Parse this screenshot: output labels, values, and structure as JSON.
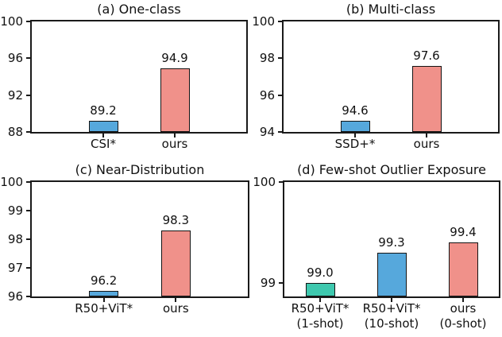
{
  "figure": {
    "background_color": "#ffffff",
    "text_color": "#111111",
    "spine_color": "#1a1a1a",
    "bar_edge_color": "#141414",
    "palette": {
      "blue": "#56A8DC",
      "salmon": "#F0918A",
      "teal": "#3EC8AE"
    }
  },
  "chart_data": [
    {
      "type": "bar",
      "title": "(a) One-class",
      "categories": [
        "CSI*",
        "ours"
      ],
      "values": [
        89.2,
        94.9
      ],
      "value_labels": [
        "89.2",
        "94.9"
      ],
      "bar_colors": [
        "#56A8DC",
        "#F0918A"
      ],
      "ylim": [
        88,
        100
      ],
      "yticks": [
        88,
        92,
        96,
        100
      ],
      "grid": false,
      "legend": null
    },
    {
      "type": "bar",
      "title": "(b) Multi-class",
      "categories": [
        "SSD+*",
        "ours"
      ],
      "values": [
        94.6,
        97.6
      ],
      "value_labels": [
        "94.6",
        "97.6"
      ],
      "bar_colors": [
        "#56A8DC",
        "#F0918A"
      ],
      "ylim": [
        94,
        100
      ],
      "yticks": [
        94,
        96,
        98,
        100
      ],
      "grid": false,
      "legend": null
    },
    {
      "type": "bar",
      "title": "(c) Near-Distribution",
      "categories": [
        "R50+ViT*",
        "ours"
      ],
      "values": [
        96.2,
        98.3
      ],
      "value_labels": [
        "96.2",
        "98.3"
      ],
      "bar_colors": [
        "#56A8DC",
        "#F0918A"
      ],
      "ylim": [
        96,
        100
      ],
      "yticks": [
        96,
        97,
        98,
        99,
        100
      ],
      "grid": false,
      "legend": null
    },
    {
      "type": "bar",
      "title": "(d) Few-shot Outlier Exposure",
      "categories": [
        "R50+ViT*\n(1-shot)",
        "R50+ViT*\n(10-shot)",
        "ours\n(0-shot)"
      ],
      "values": [
        99.0,
        99.3,
        99.4
      ],
      "value_labels": [
        "99.0",
        "99.3",
        "99.4"
      ],
      "bar_colors": [
        "#3EC8AE",
        "#56A8DC",
        "#F0918A"
      ],
      "ylim": [
        98.87,
        100
      ],
      "yticks": [
        99,
        100
      ],
      "grid": false,
      "legend": null
    }
  ]
}
